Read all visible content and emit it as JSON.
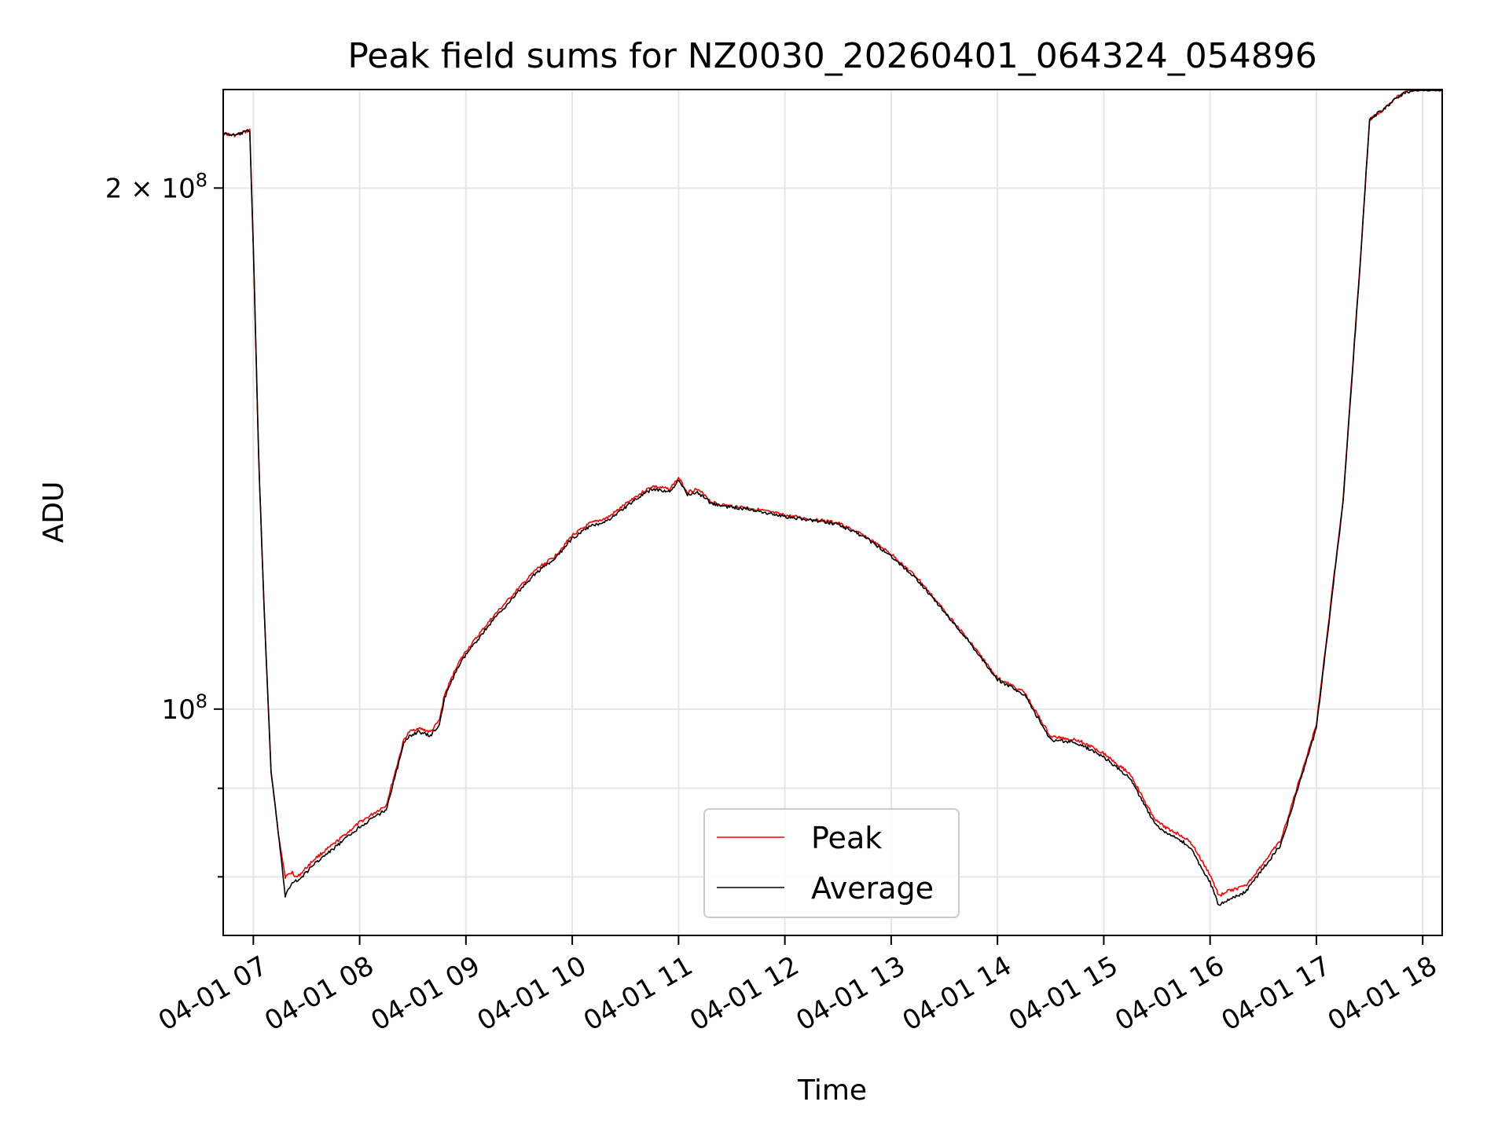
{
  "chart_data": {
    "type": "line",
    "title": "Peak field sums for NZ0030_20260401_064324_054896",
    "xlabel": "Time",
    "ylabel": "ADU",
    "y_scale": "log",
    "xlim": [
      "2026-04-01T06:43",
      "2026-04-01T18:11"
    ],
    "ylim": [
      74000000,
      228000000
    ],
    "grid": true,
    "legend_position": "lower-center",
    "x_ticks": [
      "04-01 07",
      "04-01 08",
      "04-01 09",
      "04-01 10",
      "04-01 11",
      "04-01 12",
      "04-01 13",
      "04-01 14",
      "04-01 15",
      "04-01 16",
      "04-01 17",
      "04-01 18"
    ],
    "y_ticks": [
      {
        "value": 100000000,
        "mantissa": "",
        "exponent": "8"
      },
      {
        "value": 200000000,
        "mantissa": "2",
        "exponent": "8"
      }
    ],
    "y_tick_times": "×",
    "y_tick_base": "10",
    "y_minor_ticks": [
      80000000,
      90000000
    ],
    "x": [
      "2026-04-01T06:43",
      "2026-04-01T06:50",
      "2026-04-01T06:58",
      "2026-04-01T07:00",
      "2026-04-01T07:03",
      "2026-04-01T07:06",
      "2026-04-01T07:10",
      "2026-04-01T07:14",
      "2026-04-01T07:18",
      "2026-04-01T07:22",
      "2026-04-01T07:24",
      "2026-04-01T07:25",
      "2026-04-01T07:30",
      "2026-04-01T07:35",
      "2026-04-01T07:45",
      "2026-04-01T08:00",
      "2026-04-01T08:15",
      "2026-04-01T08:25",
      "2026-04-01T08:28",
      "2026-04-01T08:33",
      "2026-04-01T08:40",
      "2026-04-01T08:45",
      "2026-04-01T08:48",
      "2026-04-01T08:55",
      "2026-04-01T09:00",
      "2026-04-01T09:15",
      "2026-04-01T09:30",
      "2026-04-01T09:40",
      "2026-04-01T09:50",
      "2026-04-01T10:00",
      "2026-04-01T10:10",
      "2026-04-01T10:20",
      "2026-04-01T10:35",
      "2026-04-01T10:45",
      "2026-04-01T10:55",
      "2026-04-01T11:00",
      "2026-04-01T11:05",
      "2026-04-01T11:10",
      "2026-04-01T11:12",
      "2026-04-01T11:15",
      "2026-04-01T11:18",
      "2026-04-01T11:22",
      "2026-04-01T11:25",
      "2026-04-01T11:30",
      "2026-04-01T11:40",
      "2026-04-01T12:00",
      "2026-04-01T12:30",
      "2026-04-01T12:45",
      "2026-04-01T13:00",
      "2026-04-01T13:15",
      "2026-04-01T13:30",
      "2026-04-01T13:45",
      "2026-04-01T14:00",
      "2026-04-01T14:15",
      "2026-04-01T14:30",
      "2026-04-01T14:45",
      "2026-04-01T15:00",
      "2026-04-01T15:15",
      "2026-04-01T15:25",
      "2026-04-01T15:30",
      "2026-04-01T15:35",
      "2026-04-01T15:45",
      "2026-04-01T15:50",
      "2026-04-01T15:55",
      "2026-04-01T16:00",
      "2026-04-01T16:05",
      "2026-04-01T16:10",
      "2026-04-01T16:20",
      "2026-04-01T16:40",
      "2026-04-01T17:00",
      "2026-04-01T17:15",
      "2026-04-01T17:25",
      "2026-04-01T17:30",
      "2026-04-01T17:35",
      "2026-04-01T17:40",
      "2026-04-01T17:45",
      "2026-04-01T17:50",
      "2026-04-01T17:55",
      "2026-04-01T18:00",
      "2026-04-01T18:05",
      "2026-04-01T18:11"
    ],
    "series": [
      {
        "name": "Peak",
        "color": "#ff0000",
        "values": [
          215000000,
          214500000,
          216000000,
          185000000,
          140000000,
          115000000,
          92000000,
          85000000,
          80000000,
          80500000,
          80000000,
          80000000,
          81000000,
          82000000,
          83500000,
          86000000,
          88000000,
          96000000,
          97000000,
          97500000,
          97000000,
          98500000,
          102000000,
          106000000,
          108000000,
          113000000,
          117500000,
          120500000,
          122500000,
          126000000,
          128000000,
          129000000,
          132500000,
          134500000,
          134000000,
          136000000,
          133500000,
          134000000,
          133500000,
          133000000,
          131800000,
          131400000,
          131200000,
          131000000,
          130700000,
          129400000,
          128100000,
          125900000,
          122900000,
          119000000,
          114000000,
          109200000,
          104200000,
          102300000,
          96400000,
          96000000,
          94300000,
          91700000,
          87700000,
          86100000,
          85400000,
          84400000,
          83500000,
          81800000,
          80200000,
          78000000,
          78500000,
          79000000,
          84000000,
          98000000,
          132000000,
          183000000,
          219000000,
          221000000,
          223000000,
          225500000,
          227000000,
          228000000,
          228000000,
          228000000,
          228000000
        ]
      },
      {
        "name": "Average",
        "color": "#000000",
        "values": [
          215000000,
          214500000,
          216000000,
          185000000,
          140000000,
          115000000,
          92000000,
          85000000,
          78000000,
          79500000,
          79600000,
          79500000,
          80500000,
          81500000,
          83000000,
          85500000,
          87500000,
          95500000,
          96500000,
          97000000,
          96500000,
          98000000,
          101500000,
          105500000,
          107500000,
          112500000,
          117000000,
          120000000,
          122000000,
          125500000,
          127500000,
          128500000,
          132000000,
          134000000,
          133500000,
          135500000,
          133000000,
          133500000,
          133000000,
          132500000,
          131500000,
          131200000,
          131000000,
          130800000,
          130500000,
          129200000,
          127900000,
          125700000,
          122600000,
          118700000,
          113800000,
          109000000,
          104000000,
          102000000,
          96000000,
          95600000,
          93800000,
          91200000,
          87200000,
          85600000,
          84800000,
          83800000,
          82800000,
          81000000,
          79400000,
          77000000,
          77600000,
          78400000,
          83500000,
          97500000,
          131500000,
          182500000,
          219000000,
          221000000,
          223000000,
          225500000,
          227000000,
          228000000,
          228000000,
          228000000,
          228000000
        ]
      }
    ]
  }
}
